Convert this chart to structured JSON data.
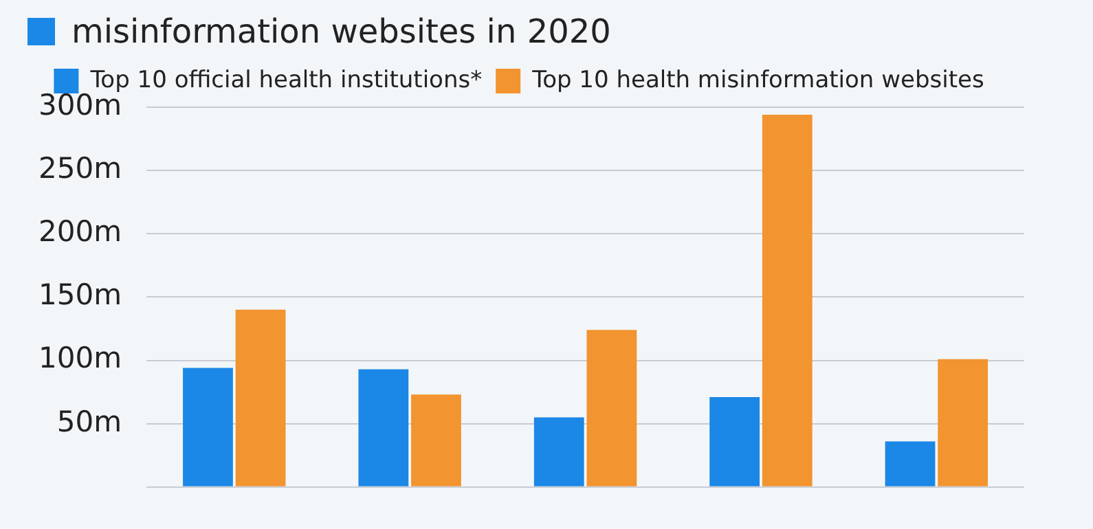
{
  "chart_data": {
    "type": "bar",
    "title": "misinformation websites in 2020",
    "categories": [
      null,
      null,
      null,
      null,
      null
    ],
    "series": [
      {
        "name": "Top 10 official health institutions*",
        "color": "#1b87e6",
        "values": [
          94,
          93,
          55,
          71,
          36
        ]
      },
      {
        "name": "Top 10 health misinformation websites",
        "color": "#f29430",
        "values": [
          140,
          73,
          124,
          294,
          101
        ]
      }
    ],
    "ylim": [
      0,
      300
    ],
    "yticks": [
      {
        "value": 0,
        "label": null
      },
      {
        "value": 50,
        "label": "50m"
      },
      {
        "value": 100,
        "label": "100m"
      },
      {
        "value": 150,
        "label": "150m"
      },
      {
        "value": 200,
        "label": "200m"
      },
      {
        "value": 250,
        "label": "250m"
      },
      {
        "value": 300,
        "label": "300m"
      }
    ],
    "grid": "y",
    "legend": "top",
    "tick_labels": "y"
  }
}
